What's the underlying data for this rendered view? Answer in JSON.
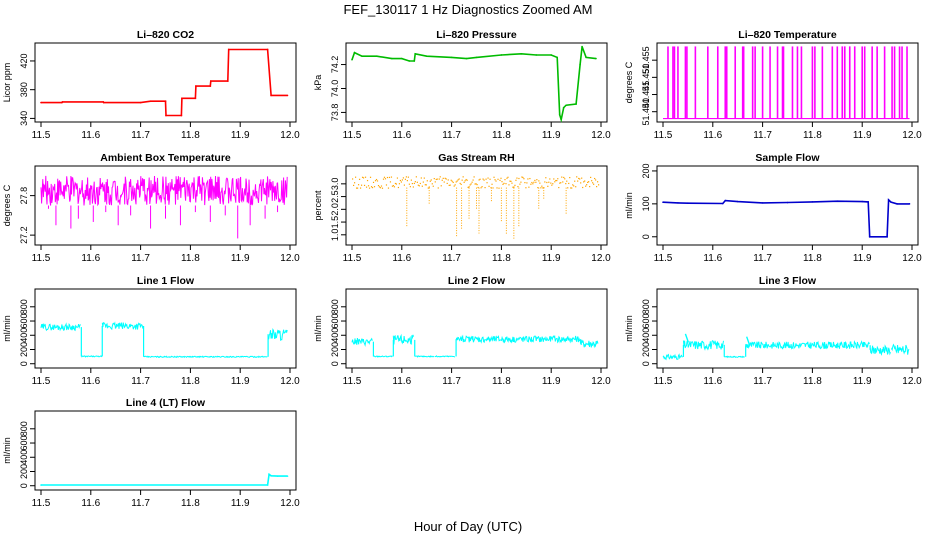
{
  "figure": {
    "title": "FEF_130117  1 Hz Diagnostics Zoomed AM",
    "xlabel": "Hour of Day (UTC)"
  },
  "chart_data": [
    {
      "type": "line",
      "title": "Li–820 CO2",
      "ylabel": "Licor ppm",
      "color": "#ff0000",
      "xlim": [
        11.5,
        12.0
      ],
      "ylim": [
        335,
        445
      ],
      "xticks": [
        11.5,
        11.6,
        11.7,
        11.8,
        11.9,
        12.0
      ],
      "xtick_labels": [
        "11.5",
        "11.6",
        "11.7",
        "11.8",
        "11.9",
        "12.0"
      ],
      "yticks": [
        340,
        380,
        420
      ],
      "ytick_labels": [
        "340",
        "380",
        "420"
      ],
      "x": [
        11.5,
        11.542,
        11.543,
        11.625,
        11.626,
        11.7,
        11.72,
        11.75,
        11.751,
        11.782,
        11.783,
        11.81,
        11.811,
        11.84,
        11.841,
        11.875,
        11.877,
        11.955,
        11.962,
        11.995
      ],
      "y": [
        362,
        362,
        363,
        363,
        362,
        362,
        364,
        364,
        344,
        344,
        368,
        368,
        385,
        385,
        392,
        392,
        436,
        436,
        372,
        372
      ]
    },
    {
      "type": "line",
      "title": "Li–820 Pressure",
      "ylabel": "kPa",
      "color": "#00bb00",
      "xlim": [
        11.5,
        12.0
      ],
      "ylim": [
        73.72,
        74.38
      ],
      "xticks": [
        11.5,
        11.6,
        11.7,
        11.8,
        11.9,
        12.0
      ],
      "xtick_labels": [
        "11.5",
        "11.6",
        "11.7",
        "11.8",
        "11.9",
        "12.0"
      ],
      "yticks": [
        73.8,
        74.0,
        74.2
      ],
      "ytick_labels": [
        "73.8",
        "74.0",
        "74.2"
      ],
      "x": [
        11.5,
        11.505,
        11.52,
        11.55,
        11.58,
        11.6,
        11.615,
        11.625,
        11.627,
        11.65,
        11.7,
        11.73,
        11.75,
        11.8,
        11.84,
        11.87,
        11.9,
        11.912,
        11.917,
        11.92,
        11.925,
        11.93,
        11.95,
        11.958,
        11.962,
        11.97,
        11.99
      ],
      "y": [
        74.24,
        74.3,
        74.27,
        74.27,
        74.25,
        74.25,
        74.23,
        74.23,
        74.29,
        74.27,
        74.26,
        74.25,
        74.26,
        74.28,
        74.29,
        74.28,
        74.28,
        74.26,
        73.78,
        73.74,
        73.84,
        73.86,
        73.87,
        74.2,
        74.35,
        74.26,
        74.25
      ]
    },
    {
      "type": "line",
      "title": "Li–820 Temperature",
      "ylabel": "degrees C",
      "color": "#ff00ff",
      "xlim": [
        11.5,
        12.0
      ],
      "ylim": [
        51.437,
        51.46
      ],
      "xticks": [
        11.5,
        11.6,
        11.7,
        11.8,
        11.9,
        12.0
      ],
      "xtick_labels": [
        "11.5",
        "11.6",
        "11.7",
        "11.8",
        "11.9",
        "12.0"
      ],
      "yticks": [
        51.44,
        51.445,
        51.45,
        51.455
      ],
      "ytick_labels": [
        "51.440",
        "51.445",
        "51.450",
        "51.455"
      ],
      "low": 51.438,
      "high": 51.459,
      "toggle_x": [
        11.51,
        11.52,
        11.523,
        11.53,
        11.545,
        11.548,
        11.565,
        11.59,
        11.61,
        11.625,
        11.628,
        11.645,
        11.66,
        11.662,
        11.68,
        11.685,
        11.7,
        11.715,
        11.73,
        11.74,
        11.742,
        11.76,
        11.77,
        11.778,
        11.8,
        11.805,
        11.82,
        11.84,
        11.85,
        11.86,
        11.865,
        11.875,
        11.885,
        11.9,
        11.905,
        11.92,
        11.93,
        11.945,
        11.96,
        11.965,
        11.975,
        11.98,
        11.99
      ]
    },
    {
      "type": "line",
      "title": "Ambient Box Temperature",
      "ylabel": "degrees C",
      "color": "#ff00ff",
      "xlim": [
        11.5,
        12.0
      ],
      "ylim": [
        27.05,
        28.25
      ],
      "xticks": [
        11.5,
        11.6,
        11.7,
        11.8,
        11.9,
        12.0
      ],
      "xtick_labels": [
        "11.5",
        "11.6",
        "11.7",
        "11.8",
        "11.9",
        "12.0"
      ],
      "yticks": [
        27.2,
        27.8
      ],
      "ytick_labels": [
        "27.2",
        "27.8"
      ],
      "band": [
        27.65,
        28.1
      ],
      "spike_x": [
        11.515,
        11.53,
        11.56,
        11.575,
        11.605,
        11.63,
        11.655,
        11.68,
        11.72,
        11.75,
        11.78,
        11.81,
        11.84,
        11.87,
        11.895,
        11.92,
        11.95,
        11.975
      ],
      "spike_y": [
        27.6,
        27.35,
        27.3,
        27.45,
        27.4,
        27.55,
        27.35,
        27.5,
        27.3,
        27.45,
        27.35,
        27.55,
        27.4,
        27.5,
        27.15,
        27.35,
        27.45,
        27.55
      ]
    },
    {
      "type": "scatter",
      "title": "Gas Stream RH",
      "ylabel": "percent",
      "color": "#ffa500",
      "xlim": [
        11.5,
        12.0
      ],
      "ylim": [
        0.6,
        3.7
      ],
      "xticks": [
        11.5,
        11.6,
        11.7,
        11.8,
        11.9,
        12.0
      ],
      "xtick_labels": [
        "11.5",
        "11.6",
        "11.7",
        "11.8",
        "11.9",
        "12.0"
      ],
      "yticks": [
        1.0,
        1.5,
        2.0,
        2.5,
        3.0
      ],
      "ytick_labels": [
        "1.0",
        "1.5",
        "2.0",
        "2.5",
        "3.0"
      ],
      "band": [
        2.85,
        3.3
      ],
      "dip_x": [
        11.61,
        11.655,
        11.71,
        11.72,
        11.735,
        11.75,
        11.755,
        11.78,
        11.8,
        11.81,
        11.825,
        11.835,
        11.875,
        11.885,
        11.93
      ],
      "dip_y": [
        1.3,
        2.2,
        0.9,
        1.2,
        1.6,
        2.0,
        1.05,
        2.3,
        1.5,
        1.0,
        0.85,
        1.3,
        2.0,
        2.4,
        1.8
      ]
    },
    {
      "type": "line",
      "title": "Sample Flow",
      "ylabel": "ml/min",
      "color": "#0000cc",
      "xlim": [
        11.5,
        12.0
      ],
      "ylim": [
        -25,
        215
      ],
      "xticks": [
        11.5,
        11.6,
        11.7,
        11.8,
        11.9,
        12.0
      ],
      "xtick_labels": [
        "11.5",
        "11.6",
        "11.7",
        "11.8",
        "11.9",
        "12.0"
      ],
      "yticks": [
        0,
        100,
        200
      ],
      "ytick_labels": [
        "0",
        "100",
        "200"
      ],
      "x": [
        11.5,
        11.53,
        11.55,
        11.62,
        11.625,
        11.65,
        11.7,
        11.75,
        11.8,
        11.85,
        11.9,
        11.912,
        11.915,
        11.95,
        11.953,
        11.958,
        11.97,
        11.995
      ],
      "y": [
        105,
        103,
        102,
        101,
        110,
        107,
        103,
        104,
        106,
        108,
        107,
        106,
        0,
        0,
        112,
        105,
        100,
        100
      ]
    },
    {
      "type": "line",
      "title": "Line 1 Flow",
      "ylabel": "ml/min",
      "color": "#00ffff",
      "xlim": [
        11.5,
        12.0
      ],
      "ylim": [
        -60,
        1050
      ],
      "xticks": [
        11.5,
        11.6,
        11.7,
        11.8,
        11.9,
        12.0
      ],
      "xtick_labels": [
        "11.5",
        "11.6",
        "11.7",
        "11.8",
        "11.9",
        "12.0"
      ],
      "yticks": [
        0,
        200,
        400,
        600,
        800
      ],
      "ytick_labels": [
        "0",
        "200",
        "400",
        "600",
        "800"
      ],
      "segments": [
        {
          "x": [
            11.5,
            11.58
          ],
          "lo": 470,
          "hi": 560
        },
        {
          "x": [
            11.581,
            11.622
          ],
          "lo": 95,
          "hi": 110
        },
        {
          "x": [
            11.623,
            11.705
          ],
          "lo": 480,
          "hi": 580
        },
        {
          "x": [
            11.706,
            11.955
          ],
          "lo": 90,
          "hi": 105
        },
        {
          "x": [
            11.956,
            11.995
          ],
          "lo": 330,
          "hi": 500
        }
      ]
    },
    {
      "type": "line",
      "title": "Line 2 Flow",
      "ylabel": "ml/min",
      "color": "#00ffff",
      "xlim": [
        11.5,
        12.0
      ],
      "ylim": [
        -60,
        1050
      ],
      "xticks": [
        11.5,
        11.6,
        11.7,
        11.8,
        11.9,
        12.0
      ],
      "xtick_labels": [
        "11.5",
        "11.6",
        "11.7",
        "11.8",
        "11.9",
        "12.0"
      ],
      "yticks": [
        0,
        200,
        400,
        600,
        800
      ],
      "ytick_labels": [
        "0",
        "200",
        "400",
        "600",
        "800"
      ],
      "segments": [
        {
          "x": [
            11.5,
            11.542
          ],
          "lo": 260,
          "hi": 360
        },
        {
          "x": [
            11.543,
            11.582
          ],
          "lo": 95,
          "hi": 110
        },
        {
          "x": [
            11.583,
            11.625
          ],
          "lo": 270,
          "hi": 400
        },
        {
          "x": [
            11.626,
            11.665
          ],
          "lo": 95,
          "hi": 110
        },
        {
          "x": [
            11.666,
            11.708
          ],
          "lo": 95,
          "hi": 110
        },
        {
          "x": [
            11.709,
            11.958
          ],
          "lo": 300,
          "hi": 390
        },
        {
          "x": [
            11.959,
            11.995
          ],
          "lo": 220,
          "hi": 340
        }
      ]
    },
    {
      "type": "line",
      "title": "Line 3 Flow",
      "ylabel": "ml/min",
      "color": "#00ffff",
      "xlim": [
        11.5,
        12.0
      ],
      "ylim": [
        -60,
        1050
      ],
      "xticks": [
        11.5,
        11.6,
        11.7,
        11.8,
        11.9,
        12.0
      ],
      "xtick_labels": [
        "11.5",
        "11.6",
        "11.7",
        "11.8",
        "11.9",
        "12.0"
      ],
      "yticks": [
        0,
        200,
        400,
        600,
        800
      ],
      "ytick_labels": [
        "0",
        "200",
        "400",
        "600",
        "800"
      ],
      "segments": [
        {
          "x": [
            11.5,
            11.54
          ],
          "lo": 60,
          "hi": 130
        },
        {
          "x": [
            11.541,
            11.622
          ],
          "lo": 200,
          "hi": 330
        },
        {
          "x": [
            11.623,
            11.665
          ],
          "lo": 90,
          "hi": 105
        },
        {
          "x": [
            11.666,
            11.915
          ],
          "lo": 210,
          "hi": 310
        },
        {
          "x": [
            11.916,
            11.958
          ],
          "lo": 130,
          "hi": 260
        },
        {
          "x": [
            11.959,
            11.995
          ],
          "lo": 120,
          "hi": 280
        }
      ],
      "peaks": [
        {
          "x": 11.545,
          "y": 420
        },
        {
          "x": 11.668,
          "y": 380
        }
      ]
    },
    {
      "type": "line",
      "title": "Line 4 (LT) Flow",
      "ylabel": "ml/min",
      "color": "#00ffff",
      "xlim": [
        11.5,
        12.0
      ],
      "ylim": [
        -60,
        1050
      ],
      "xticks": [
        11.5,
        11.6,
        11.7,
        11.8,
        11.9,
        12.0
      ],
      "xtick_labels": [
        "11.5",
        "11.6",
        "11.7",
        "11.8",
        "11.9",
        "12.0"
      ],
      "yticks": [
        0,
        200,
        400,
        600,
        800
      ],
      "ytick_labels": [
        "0",
        "200",
        "400",
        "600",
        "800"
      ],
      "x": [
        11.5,
        11.955,
        11.958,
        11.962,
        11.975,
        11.995
      ],
      "y": [
        10,
        10,
        160,
        140,
        135,
        135
      ]
    }
  ]
}
